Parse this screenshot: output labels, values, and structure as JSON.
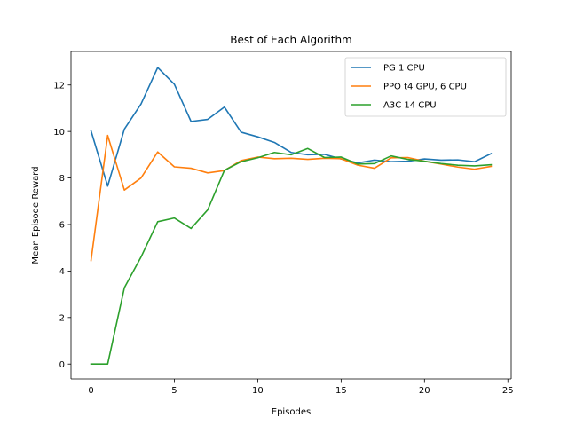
{
  "chart_data": {
    "type": "line",
    "title": "Best of Each Algorithm",
    "xlabel": "Episodes",
    "ylabel": "Mean Episode Reward",
    "xlim": [
      -1.2,
      25.2
    ],
    "ylim": [
      -0.64,
      13.44
    ],
    "xticks": [
      0,
      5,
      10,
      15,
      20,
      25
    ],
    "yticks": [
      0,
      2,
      4,
      6,
      8,
      10,
      12
    ],
    "grid": false,
    "legend_position": "top-right",
    "x": [
      0,
      1,
      2,
      3,
      4,
      5,
      6,
      7,
      8,
      9,
      10,
      11,
      12,
      13,
      14,
      15,
      16,
      17,
      18,
      19,
      20,
      21,
      22,
      23,
      24
    ],
    "series": [
      {
        "name": "PG 1 CPU",
        "color": "#1f77b4",
        "values": [
          10.03,
          7.65,
          10.1,
          11.18,
          12.75,
          12.03,
          10.43,
          10.52,
          11.05,
          9.97,
          9.77,
          9.53,
          9.1,
          9.0,
          9.02,
          8.82,
          8.65,
          8.77,
          8.7,
          8.72,
          8.82,
          8.77,
          8.78,
          8.7,
          9.05
        ]
      },
      {
        "name": "PPO t4 GPU, 6 CPU",
        "color": "#ff7f0e",
        "values": [
          4.45,
          9.83,
          7.48,
          8.0,
          9.12,
          8.48,
          8.42,
          8.22,
          8.32,
          8.75,
          8.9,
          8.83,
          8.85,
          8.8,
          8.85,
          8.83,
          8.55,
          8.42,
          8.87,
          8.88,
          8.72,
          8.6,
          8.47,
          8.38,
          8.5
        ]
      },
      {
        "name": "A3C 14 CPU",
        "color": "#2ca02c",
        "values": [
          0.0,
          0.0,
          3.28,
          4.6,
          6.12,
          6.28,
          5.83,
          6.63,
          8.33,
          8.7,
          8.87,
          9.1,
          9.0,
          9.27,
          8.88,
          8.9,
          8.6,
          8.62,
          8.95,
          8.8,
          8.72,
          8.62,
          8.55,
          8.52,
          8.57
        ]
      }
    ]
  }
}
